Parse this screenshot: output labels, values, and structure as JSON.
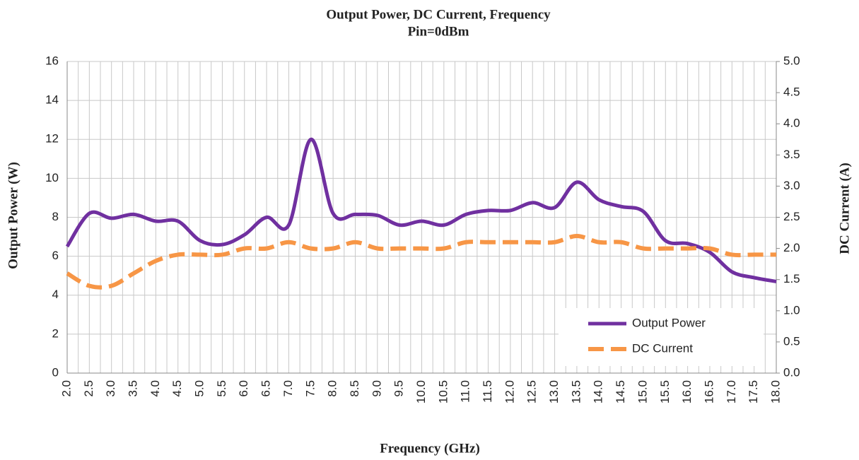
{
  "chart_data": {
    "type": "line",
    "title": "Output Power, DC Current, Frequency",
    "subtitle": "Pin=0dBm",
    "xlabel": "Frequency (GHz)",
    "ylabel": "Output Power (W)",
    "y2label": "DC Current (A)",
    "x": [
      2.0,
      2.5,
      3.0,
      3.5,
      4.0,
      4.5,
      5.0,
      5.5,
      6.0,
      6.5,
      7.0,
      7.5,
      8.0,
      8.5,
      9.0,
      9.5,
      10.0,
      10.5,
      11.0,
      11.5,
      12.0,
      12.5,
      13.0,
      13.5,
      14.0,
      14.5,
      15.0,
      15.5,
      16.0,
      16.5,
      17.0,
      17.5,
      18.0
    ],
    "series": [
      {
        "name": "Output Power",
        "color": "#7030a0",
        "dashed": false,
        "values": [
          6.5,
          8.2,
          7.95,
          8.15,
          7.8,
          7.8,
          6.8,
          6.6,
          7.1,
          8.0,
          7.6,
          12.0,
          8.2,
          8.15,
          8.1,
          7.6,
          7.8,
          7.6,
          8.15,
          8.35,
          8.35,
          8.75,
          8.5,
          9.8,
          8.9,
          8.55,
          8.3,
          6.8,
          6.65,
          6.2,
          5.2,
          4.9,
          4.7
        ]
      },
      {
        "name": "DC Current",
        "color": "#f79646",
        "dashed": true,
        "axis": "y2",
        "values": [
          1.6,
          1.4,
          1.4,
          1.6,
          1.8,
          1.9,
          1.9,
          1.9,
          2.0,
          2.0,
          2.1,
          2.0,
          2.0,
          2.1,
          2.0,
          2.0,
          2.0,
          2.0,
          2.1,
          2.1,
          2.1,
          2.1,
          2.1,
          2.2,
          2.1,
          2.1,
          2.0,
          2.0,
          2.0,
          2.0,
          1.9,
          1.9,
          1.9
        ]
      }
    ],
    "xlim": [
      2,
      18
    ],
    "xticks": [
      {
        "value": 2,
        "label": "2.0"
      },
      {
        "value": 2.5,
        "label": "2.5"
      },
      {
        "value": 3,
        "label": "3.0"
      },
      {
        "value": 3.5,
        "label": "3.5"
      },
      {
        "value": 4,
        "label": "4.0"
      },
      {
        "value": 4.5,
        "label": "4.5"
      },
      {
        "value": 5,
        "label": "5.0"
      },
      {
        "value": 5.5,
        "label": "5.5"
      },
      {
        "value": 6,
        "label": "6.0"
      },
      {
        "value": 6.5,
        "label": "6.5"
      },
      {
        "value": 7,
        "label": "7.0"
      },
      {
        "value": 7.5,
        "label": "7.5"
      },
      {
        "value": 8,
        "label": "8.0"
      },
      {
        "value": 8.5,
        "label": "8.5"
      },
      {
        "value": 9,
        "label": "9.0"
      },
      {
        "value": 9.5,
        "label": "9.5"
      },
      {
        "value": 10,
        "label": "10.0"
      },
      {
        "value": 10.5,
        "label": "10.5"
      },
      {
        "value": 11,
        "label": "11.0"
      },
      {
        "value": 11.5,
        "label": "11.5"
      },
      {
        "value": 12,
        "label": "12.0"
      },
      {
        "value": 12.5,
        "label": "12.5"
      },
      {
        "value": 13,
        "label": "13.0"
      },
      {
        "value": 13.5,
        "label": "13.5"
      },
      {
        "value": 14,
        "label": "14.0"
      },
      {
        "value": 14.5,
        "label": "14.5"
      },
      {
        "value": 15,
        "label": "15.0"
      },
      {
        "value": 15.5,
        "label": "15.5"
      },
      {
        "value": 16,
        "label": "16.0"
      },
      {
        "value": 16.5,
        "label": "16.5"
      },
      {
        "value": 17,
        "label": "17.0"
      },
      {
        "value": 17.5,
        "label": "17.5"
      },
      {
        "value": 18,
        "label": "18.0"
      }
    ],
    "ylim": [
      0,
      16
    ],
    "yticks": [
      0,
      2,
      4,
      6,
      8,
      10,
      12,
      14,
      16
    ],
    "y2lim": [
      0,
      5
    ],
    "y2ticks": [
      {
        "value": 0,
        "label": "0.0"
      },
      {
        "value": 0.5,
        "label": "0.5"
      },
      {
        "value": 1,
        "label": "1.0"
      },
      {
        "value": 1.5,
        "label": "1.5"
      },
      {
        "value": 2,
        "label": "2.0"
      },
      {
        "value": 2.5,
        "label": "2.5"
      },
      {
        "value": 3,
        "label": "3.0"
      },
      {
        "value": 3.5,
        "label": "3.5"
      },
      {
        "value": 4,
        "label": "4.0"
      },
      {
        "value": 4.5,
        "label": "4.5"
      },
      {
        "value": 5,
        "label": "5.0"
      }
    ],
    "grid": true,
    "legend": "lower right"
  }
}
